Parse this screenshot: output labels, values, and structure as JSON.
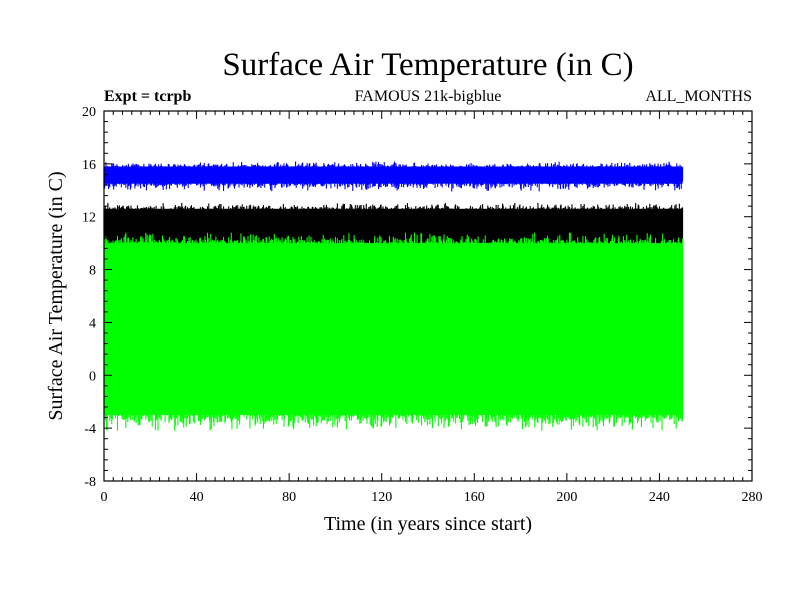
{
  "chart_data": {
    "type": "line",
    "title": "Surface Air Temperature (in C)",
    "subtitle_left": "Expt = tcrpb",
    "subtitle_center": "FAMOUS 21k-bigblue",
    "subtitle_right": "ALL_MONTHS",
    "xlabel": "Time (in years since start)",
    "ylabel": "Surface Air Temperature (in C)",
    "xlim": [
      0,
      280
    ],
    "ylim": [
      -8,
      20
    ],
    "xticks": [
      "0",
      "40",
      "80",
      "120",
      "160",
      "200",
      "240",
      "280"
    ],
    "yticks": [
      "-8",
      "-4",
      "0",
      "4",
      "8",
      "12",
      "16",
      "20"
    ],
    "x_range_years": [
      0,
      250
    ],
    "series": [
      {
        "name": "blue",
        "color": "#0000ff",
        "band_low": 14.5,
        "band_high": 15.8,
        "spike_low": 13.9,
        "spike_high": 16.2
      },
      {
        "name": "black",
        "color": "#000000",
        "band_low": 9.8,
        "band_high": 12.6,
        "spike_low": 9.3,
        "spike_high": 13.1
      },
      {
        "name": "green",
        "color": "#00ff00",
        "band_low": -3.0,
        "band_high": 10.0,
        "spike_low": -4.2,
        "spike_high": 10.8
      }
    ]
  }
}
